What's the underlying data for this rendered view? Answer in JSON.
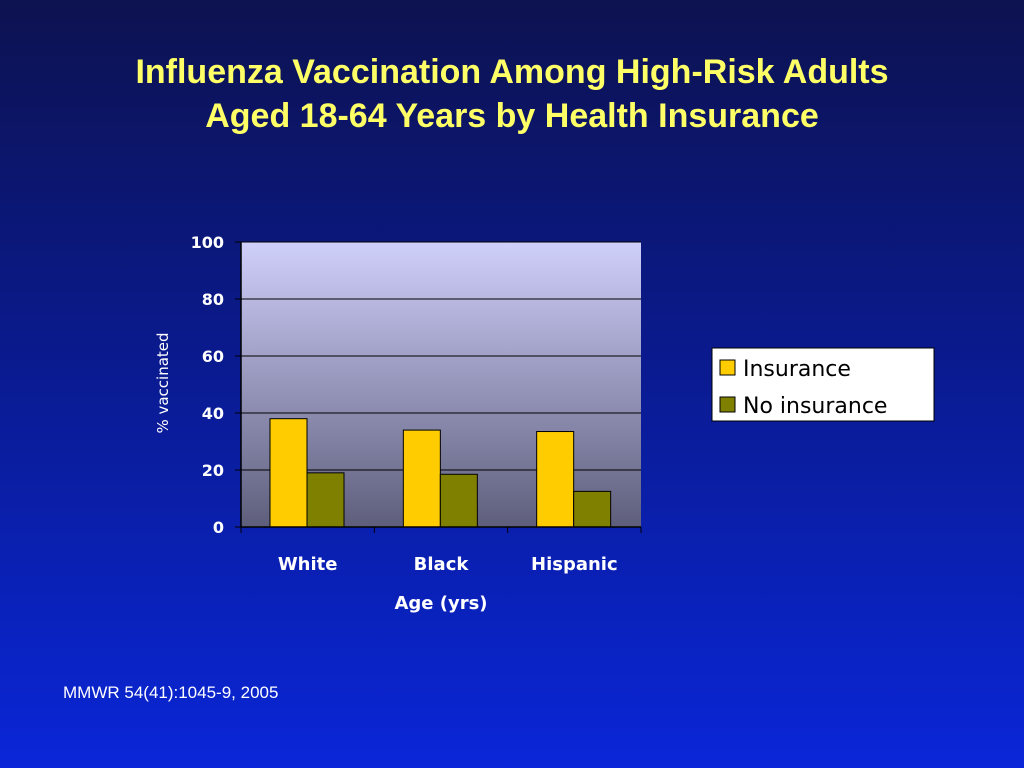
{
  "slide": {
    "title_line1": "Influenza Vaccination Among High-Risk Adults",
    "title_line2": "Aged 18-64 Years by Health Insurance",
    "source": "MMWR 54(41):1045-9, 2005"
  },
  "chart_data": {
    "type": "bar",
    "title": "",
    "xlabel": "Age (yrs)",
    "ylabel": "% vaccinated",
    "categories": [
      "White",
      "Black",
      "Hispanic"
    ],
    "ylim": [
      0,
      100
    ],
    "yticks": [
      0,
      20,
      40,
      60,
      80,
      100
    ],
    "grid": true,
    "legend_position": "right",
    "series": [
      {
        "name": "Insurance",
        "values": [
          38,
          34,
          33.5
        ],
        "color": "#ffcc00"
      },
      {
        "name": "No insurance",
        "values": [
          19,
          18.5,
          12.5
        ],
        "color": "#808000"
      }
    ]
  }
}
